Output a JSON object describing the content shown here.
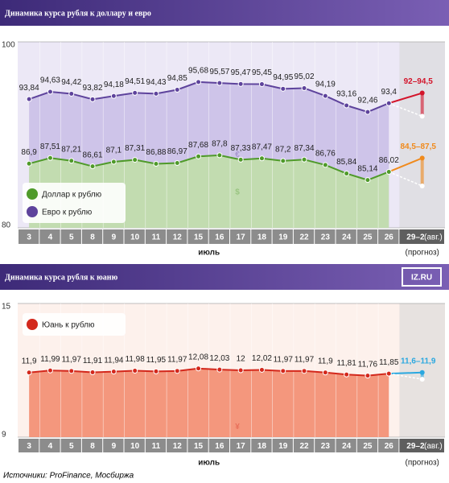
{
  "chart_data": [
    {
      "type": "line",
      "title": "Динамика курса рубля к доллару и евро",
      "categories": [
        "3",
        "4",
        "5",
        "8",
        "9",
        "10",
        "11",
        "12",
        "15",
        "16",
        "17",
        "18",
        "19",
        "22",
        "23",
        "24",
        "25",
        "26",
        "29–2"
      ],
      "category_note": "(авг.)",
      "x_label": "июль",
      "forecast_label": "(прогноз)",
      "ylim": [
        80,
        100
      ],
      "yticks": [
        80,
        100
      ],
      "legend": "lower left",
      "series": [
        {
          "name": "Евро к рублю",
          "color": "#5e439c",
          "fill": "#c9bde6",
          "symbol": "€",
          "forecast_color": "#d3142a",
          "values": [
            93.84,
            94.63,
            94.42,
            93.82,
            94.18,
            94.51,
            94.43,
            94.85,
            95.68,
            95.57,
            95.47,
            95.45,
            94.95,
            95.02,
            94.19,
            93.16,
            92.46,
            93.4,
            null
          ],
          "value_labels": [
            "93,84",
            "94,63",
            "94,42",
            "93,82",
            "94,18",
            "94,51",
            "94,43",
            "94,85",
            "95,68",
            "95,57",
            "95,47",
            "95,45",
            "94,95",
            "95,02",
            "94,19",
            "93,16",
            "92,46",
            "93,4",
            null
          ],
          "forecast": {
            "low": 92,
            "high": 94.5,
            "label": "92–94,5"
          }
        },
        {
          "name": "Доллар к рублю",
          "color": "#4f9a2a",
          "fill": "#bfe0a6",
          "symbol": "$",
          "forecast_color": "#f08a1c",
          "values": [
            86.9,
            87.51,
            87.21,
            86.61,
            87.1,
            87.31,
            86.88,
            86.97,
            87.68,
            87.8,
            87.33,
            87.47,
            87.2,
            87.34,
            86.76,
            85.84,
            85.14,
            86.02,
            null
          ],
          "value_labels": [
            "86,9",
            "87,51",
            "87,21",
            "86,61",
            "87,1",
            "87,31",
            "86,88",
            "86,97",
            "87,68",
            "87,8",
            "87,33",
            "87,47",
            "87,2",
            "87,34",
            "86,76",
            "85,84",
            "85,14",
            "86,02",
            null
          ],
          "forecast": {
            "low": 84.5,
            "high": 87.5,
            "label": "84,5–87,5"
          }
        }
      ]
    },
    {
      "type": "line",
      "title": "Динамика курса рубля к юаню",
      "categories": [
        "3",
        "4",
        "5",
        "8",
        "9",
        "10",
        "11",
        "12",
        "15",
        "16",
        "17",
        "18",
        "19",
        "22",
        "23",
        "24",
        "25",
        "26",
        "29–2"
      ],
      "category_note": "(авг.)",
      "x_label": "июль",
      "forecast_label": "(прогноз)",
      "ylim": [
        9,
        15
      ],
      "yticks": [
        9,
        15
      ],
      "legend": "upper left",
      "series": [
        {
          "name": "Юань к рублю",
          "color": "#d3281c",
          "fill": "#f2876a",
          "symbol": "¥",
          "forecast_color": "#2aa8e0",
          "values": [
            11.9,
            11.99,
            11.97,
            11.91,
            11.94,
            11.98,
            11.95,
            11.97,
            12.08,
            12.03,
            12,
            12.02,
            11.97,
            11.97,
            11.9,
            11.81,
            11.76,
            11.85,
            null
          ],
          "value_labels": [
            "11,9",
            "11,99",
            "11,97",
            "11,91",
            "11,94",
            "11,98",
            "11,95",
            "11,97",
            "12,08",
            "12,03",
            null,
            "12,02",
            "11,97",
            "11,97",
            "11,9",
            "11,81",
            "11,76",
            "11,85",
            null
          ],
          "forecast": {
            "low": 11.6,
            "high": 11.9,
            "label": "11,6–11,9"
          }
        }
      ]
    }
  ],
  "logo": "IZ.RU",
  "source": "Источники: ProFinance, Мосбиржа"
}
